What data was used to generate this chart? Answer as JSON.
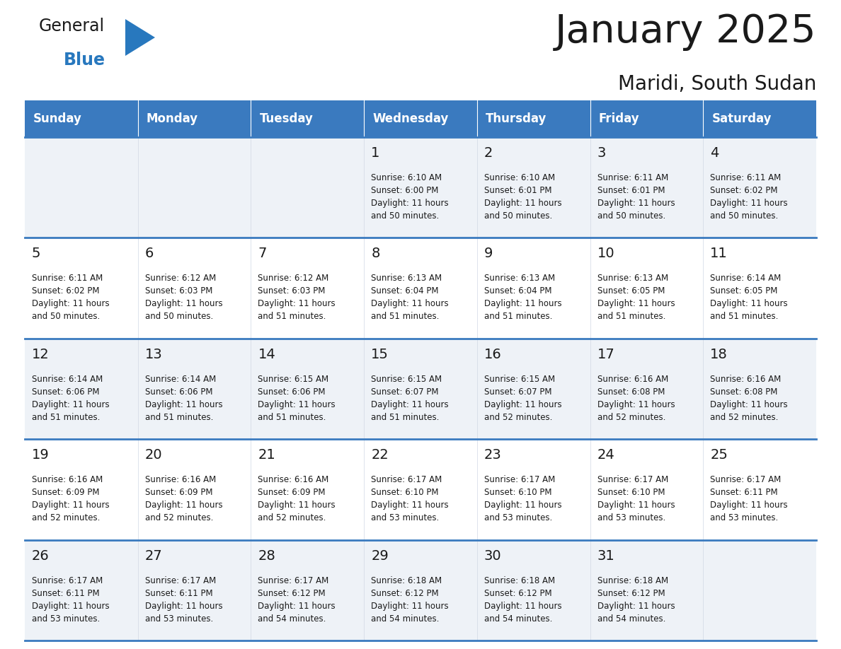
{
  "title": "January 2025",
  "subtitle": "Maridi, South Sudan",
  "header_bg_color": "#3a7abf",
  "header_text_color": "#ffffff",
  "cell_bg_colors": [
    "#eef2f7",
    "#ffffff"
  ],
  "grid_line_color": "#3a7abf",
  "text_color": "#1a1a1a",
  "day_names": [
    "Sunday",
    "Monday",
    "Tuesday",
    "Wednesday",
    "Thursday",
    "Friday",
    "Saturday"
  ],
  "days": [
    {
      "day": 1,
      "col": 3,
      "row": 0,
      "sunrise": "6:10 AM",
      "sunset": "6:00 PM",
      "daylight_hours": 11,
      "daylight_minutes": 50
    },
    {
      "day": 2,
      "col": 4,
      "row": 0,
      "sunrise": "6:10 AM",
      "sunset": "6:01 PM",
      "daylight_hours": 11,
      "daylight_minutes": 50
    },
    {
      "day": 3,
      "col": 5,
      "row": 0,
      "sunrise": "6:11 AM",
      "sunset": "6:01 PM",
      "daylight_hours": 11,
      "daylight_minutes": 50
    },
    {
      "day": 4,
      "col": 6,
      "row": 0,
      "sunrise": "6:11 AM",
      "sunset": "6:02 PM",
      "daylight_hours": 11,
      "daylight_minutes": 50
    },
    {
      "day": 5,
      "col": 0,
      "row": 1,
      "sunrise": "6:11 AM",
      "sunset": "6:02 PM",
      "daylight_hours": 11,
      "daylight_minutes": 50
    },
    {
      "day": 6,
      "col": 1,
      "row": 1,
      "sunrise": "6:12 AM",
      "sunset": "6:03 PM",
      "daylight_hours": 11,
      "daylight_minutes": 50
    },
    {
      "day": 7,
      "col": 2,
      "row": 1,
      "sunrise": "6:12 AM",
      "sunset": "6:03 PM",
      "daylight_hours": 11,
      "daylight_minutes": 51
    },
    {
      "day": 8,
      "col": 3,
      "row": 1,
      "sunrise": "6:13 AM",
      "sunset": "6:04 PM",
      "daylight_hours": 11,
      "daylight_minutes": 51
    },
    {
      "day": 9,
      "col": 4,
      "row": 1,
      "sunrise": "6:13 AM",
      "sunset": "6:04 PM",
      "daylight_hours": 11,
      "daylight_minutes": 51
    },
    {
      "day": 10,
      "col": 5,
      "row": 1,
      "sunrise": "6:13 AM",
      "sunset": "6:05 PM",
      "daylight_hours": 11,
      "daylight_minutes": 51
    },
    {
      "day": 11,
      "col": 6,
      "row": 1,
      "sunrise": "6:14 AM",
      "sunset": "6:05 PM",
      "daylight_hours": 11,
      "daylight_minutes": 51
    },
    {
      "day": 12,
      "col": 0,
      "row": 2,
      "sunrise": "6:14 AM",
      "sunset": "6:06 PM",
      "daylight_hours": 11,
      "daylight_minutes": 51
    },
    {
      "day": 13,
      "col": 1,
      "row": 2,
      "sunrise": "6:14 AM",
      "sunset": "6:06 PM",
      "daylight_hours": 11,
      "daylight_minutes": 51
    },
    {
      "day": 14,
      "col": 2,
      "row": 2,
      "sunrise": "6:15 AM",
      "sunset": "6:06 PM",
      "daylight_hours": 11,
      "daylight_minutes": 51
    },
    {
      "day": 15,
      "col": 3,
      "row": 2,
      "sunrise": "6:15 AM",
      "sunset": "6:07 PM",
      "daylight_hours": 11,
      "daylight_minutes": 51
    },
    {
      "day": 16,
      "col": 4,
      "row": 2,
      "sunrise": "6:15 AM",
      "sunset": "6:07 PM",
      "daylight_hours": 11,
      "daylight_minutes": 52
    },
    {
      "day": 17,
      "col": 5,
      "row": 2,
      "sunrise": "6:16 AM",
      "sunset": "6:08 PM",
      "daylight_hours": 11,
      "daylight_minutes": 52
    },
    {
      "day": 18,
      "col": 6,
      "row": 2,
      "sunrise": "6:16 AM",
      "sunset": "6:08 PM",
      "daylight_hours": 11,
      "daylight_minutes": 52
    },
    {
      "day": 19,
      "col": 0,
      "row": 3,
      "sunrise": "6:16 AM",
      "sunset": "6:09 PM",
      "daylight_hours": 11,
      "daylight_minutes": 52
    },
    {
      "day": 20,
      "col": 1,
      "row": 3,
      "sunrise": "6:16 AM",
      "sunset": "6:09 PM",
      "daylight_hours": 11,
      "daylight_minutes": 52
    },
    {
      "day": 21,
      "col": 2,
      "row": 3,
      "sunrise": "6:16 AM",
      "sunset": "6:09 PM",
      "daylight_hours": 11,
      "daylight_minutes": 52
    },
    {
      "day": 22,
      "col": 3,
      "row": 3,
      "sunrise": "6:17 AM",
      "sunset": "6:10 PM",
      "daylight_hours": 11,
      "daylight_minutes": 53
    },
    {
      "day": 23,
      "col": 4,
      "row": 3,
      "sunrise": "6:17 AM",
      "sunset": "6:10 PM",
      "daylight_hours": 11,
      "daylight_minutes": 53
    },
    {
      "day": 24,
      "col": 5,
      "row": 3,
      "sunrise": "6:17 AM",
      "sunset": "6:10 PM",
      "daylight_hours": 11,
      "daylight_minutes": 53
    },
    {
      "day": 25,
      "col": 6,
      "row": 3,
      "sunrise": "6:17 AM",
      "sunset": "6:11 PM",
      "daylight_hours": 11,
      "daylight_minutes": 53
    },
    {
      "day": 26,
      "col": 0,
      "row": 4,
      "sunrise": "6:17 AM",
      "sunset": "6:11 PM",
      "daylight_hours": 11,
      "daylight_minutes": 53
    },
    {
      "day": 27,
      "col": 1,
      "row": 4,
      "sunrise": "6:17 AM",
      "sunset": "6:11 PM",
      "daylight_hours": 11,
      "daylight_minutes": 53
    },
    {
      "day": 28,
      "col": 2,
      "row": 4,
      "sunrise": "6:17 AM",
      "sunset": "6:12 PM",
      "daylight_hours": 11,
      "daylight_minutes": 54
    },
    {
      "day": 29,
      "col": 3,
      "row": 4,
      "sunrise": "6:18 AM",
      "sunset": "6:12 PM",
      "daylight_hours": 11,
      "daylight_minutes": 54
    },
    {
      "day": 30,
      "col": 4,
      "row": 4,
      "sunrise": "6:18 AM",
      "sunset": "6:12 PM",
      "daylight_hours": 11,
      "daylight_minutes": 54
    },
    {
      "day": 31,
      "col": 5,
      "row": 4,
      "sunrise": "6:18 AM",
      "sunset": "6:12 PM",
      "daylight_hours": 11,
      "daylight_minutes": 54
    }
  ],
  "logo_color_general": "#1a1a1a",
  "logo_color_blue": "#2878be",
  "logo_triangle_color": "#2878be",
  "title_fontsize": 40,
  "subtitle_fontsize": 20,
  "header_fontsize": 12,
  "day_num_fontsize": 14,
  "cell_text_fontsize": 8.5
}
